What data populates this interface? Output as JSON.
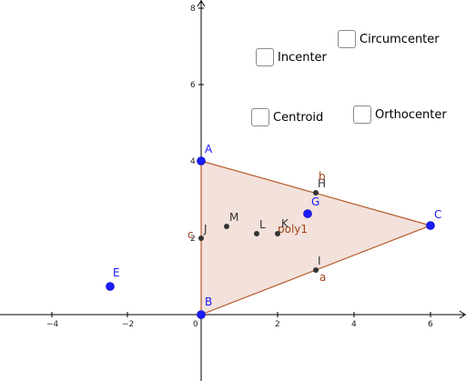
{
  "axes": {
    "x_ticks": [
      "−4",
      "−2",
      "0",
      "2",
      "4",
      "6"
    ],
    "y_ticks": [
      "2",
      "4",
      "6",
      "8"
    ]
  },
  "polygon": {
    "label": "poly1",
    "fill": "#f3e1dc",
    "stroke": "#b55a2a"
  },
  "segments": {
    "a": "a",
    "b": "b",
    "c": "c"
  },
  "points": {
    "A": "A",
    "B": "B",
    "C": "C",
    "E": "E",
    "G": "G",
    "H": "H",
    "I": "I",
    "J": "J",
    "K": "K",
    "L": "L",
    "M": "M"
  },
  "colors": {
    "blue_point": "#1a1aff",
    "dark_point": "#333333",
    "axis": "#000000"
  },
  "checkboxes": {
    "circumcenter": "Circumcenter",
    "incenter": "Incenter",
    "centroid": "Centroid",
    "orthocenter": "Orthocenter"
  }
}
